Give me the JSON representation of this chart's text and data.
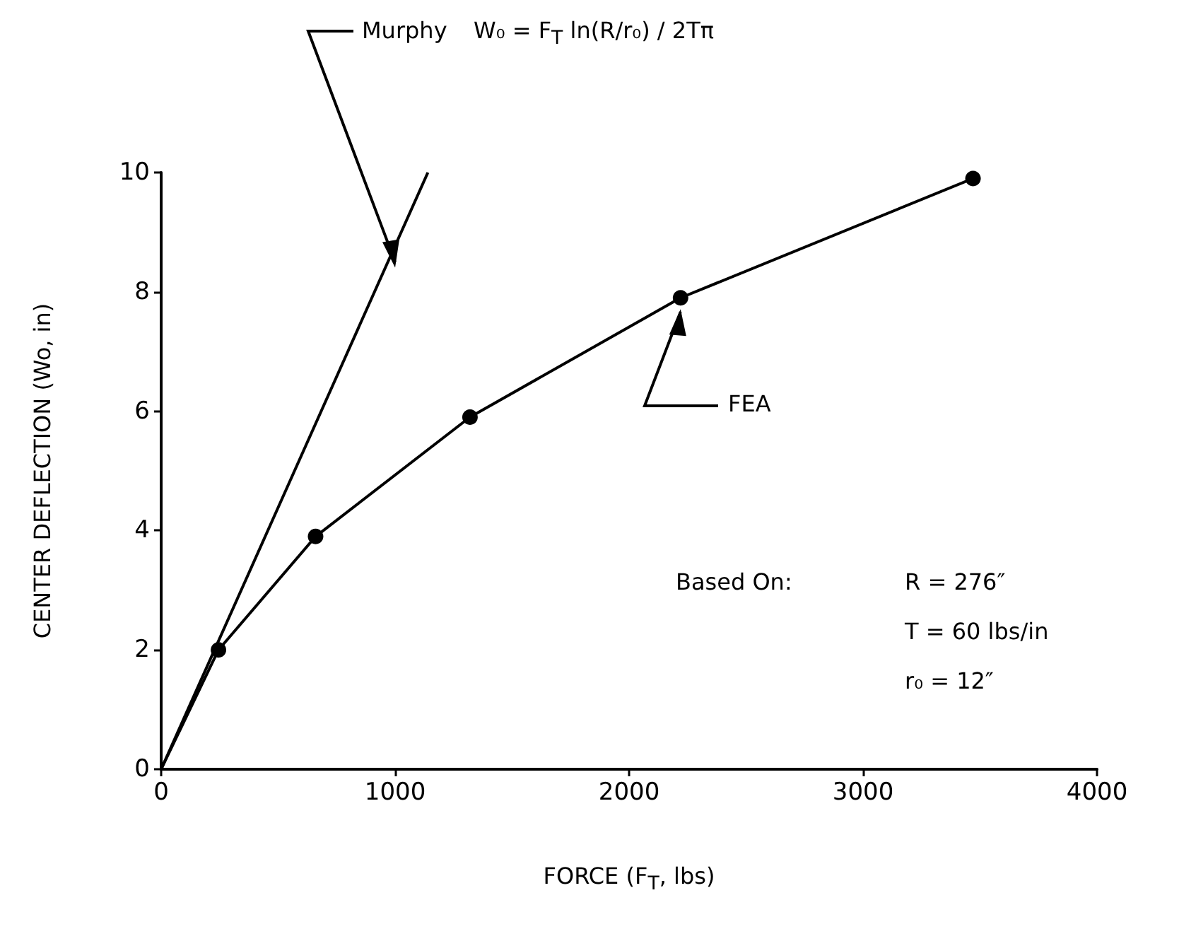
{
  "chart_data": {
    "type": "line",
    "xlabel": "FORCE (F$_{T}$, lbs)",
    "ylabel": "CENTER DEFLECTION (Wo, in)",
    "xlim": [
      0,
      4000
    ],
    "xticks": [
      0,
      1000,
      2000,
      3000,
      4000
    ],
    "ylim": [
      0,
      10
    ],
    "yticks": [
      0,
      2,
      4,
      6,
      8,
      10
    ],
    "grid": false,
    "legend": false,
    "series": [
      {
        "name": "Murphy",
        "color": "#000000",
        "marker": "none",
        "x": [
          0,
          1140
        ],
        "values": [
          0,
          10
        ]
      },
      {
        "name": "FEA",
        "color": "#000000",
        "marker": "circle",
        "x": [
          0,
          245,
          660,
          1320,
          2220,
          3470
        ],
        "values": [
          0,
          2,
          3.9,
          5.9,
          7.9,
          9.9
        ]
      }
    ],
    "annotations": [
      "W₀ = F$_{T}$ ln(R/r₀) / 2Tπ",
      "Based On:",
      "R = 276″",
      "T = 60 lbs/in",
      "r₀ = 12″"
    ]
  }
}
